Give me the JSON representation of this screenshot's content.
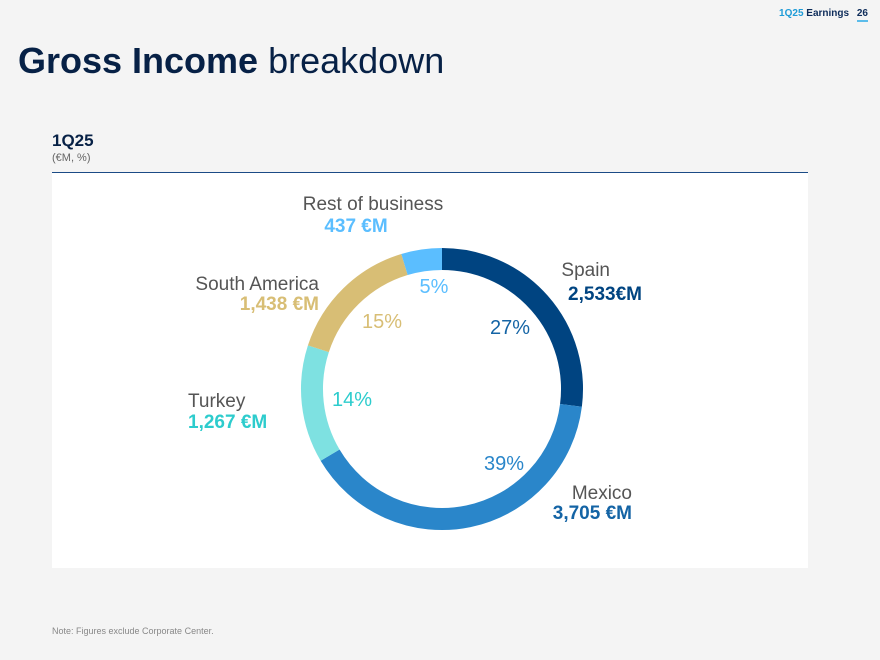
{
  "header": {
    "period": "1Q25",
    "label": "Earnings",
    "page": "26"
  },
  "title": {
    "bold": "Gross Income",
    "rest": "breakdown"
  },
  "subtitle": {
    "period": "1Q25",
    "units": "(€M, %)"
  },
  "note": "Note: Figures exclude Corporate Center.",
  "colors": {
    "title": "#072146",
    "background": "#f4f4f4",
    "panel": "#ffffff"
  },
  "chart_data": {
    "type": "pie",
    "donut": true,
    "slices": [
      {
        "name": "Spain",
        "value_label": "2,533€M",
        "value": 2533,
        "percent_label": "27%",
        "percent": 27,
        "color": "#004481"
      },
      {
        "name": "Mexico",
        "value_label": "3,705 €M",
        "value": 3705,
        "percent_label": "39%",
        "percent": 39,
        "color": "#2a86ca"
      },
      {
        "name": "Turkey",
        "value_label": "1,267 €M",
        "value": 1267,
        "percent_label": "14%",
        "percent": 14,
        "color": "#7ee1e1"
      },
      {
        "name": "South America",
        "value_label": "1,438 €M",
        "value": 1438,
        "percent_label": "15%",
        "percent": 15,
        "color": "#d8be75"
      },
      {
        "name": "Rest of business",
        "value_label": "437 €M",
        "value": 437,
        "percent_label": "5%",
        "percent": 5,
        "color": "#5bbeff"
      }
    ],
    "label_colors": {
      "Spain": "#004481",
      "Mexico": "#1464a5",
      "Turkey": "#2dcccd",
      "South America": "#d8be75",
      "Rest of business": "#5bbeff"
    }
  }
}
